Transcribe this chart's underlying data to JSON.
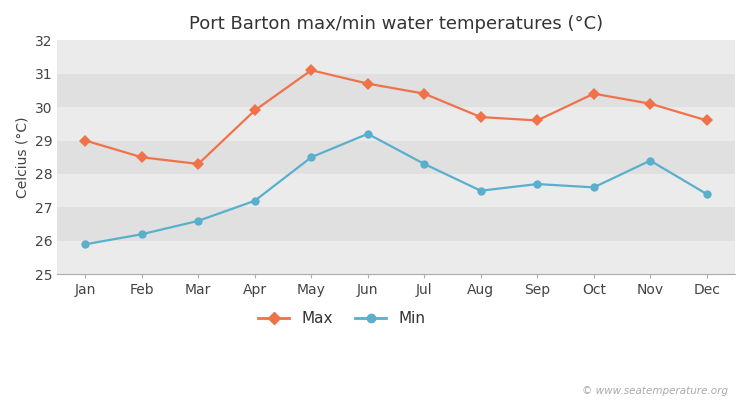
{
  "title": "Port Barton max/min water temperatures (°C)",
  "ylabel": "Celcius (°C)",
  "months": [
    "Jan",
    "Feb",
    "Mar",
    "Apr",
    "May",
    "Jun",
    "Jul",
    "Aug",
    "Sep",
    "Oct",
    "Nov",
    "Dec"
  ],
  "max_temps": [
    29.0,
    28.5,
    28.3,
    29.9,
    31.1,
    30.7,
    30.4,
    29.7,
    29.6,
    30.4,
    30.1,
    29.6
  ],
  "min_temps": [
    25.9,
    26.2,
    26.6,
    27.2,
    28.5,
    29.2,
    28.3,
    27.5,
    27.7,
    27.6,
    28.4,
    27.4
  ],
  "max_color": "#f0724a",
  "min_color": "#5aafcc",
  "bg_color": "#ffffff",
  "band_light": "#ebebeb",
  "band_dark": "#e0e0e0",
  "ylim": [
    25,
    32
  ],
  "yticks": [
    25,
    26,
    27,
    28,
    29,
    30,
    31,
    32
  ],
  "watermark": "© www.seatemperature.org",
  "legend_max": "Max",
  "legend_min": "Min",
  "title_fontsize": 13,
  "axis_fontsize": 10,
  "watermark_fontsize": 7.5
}
